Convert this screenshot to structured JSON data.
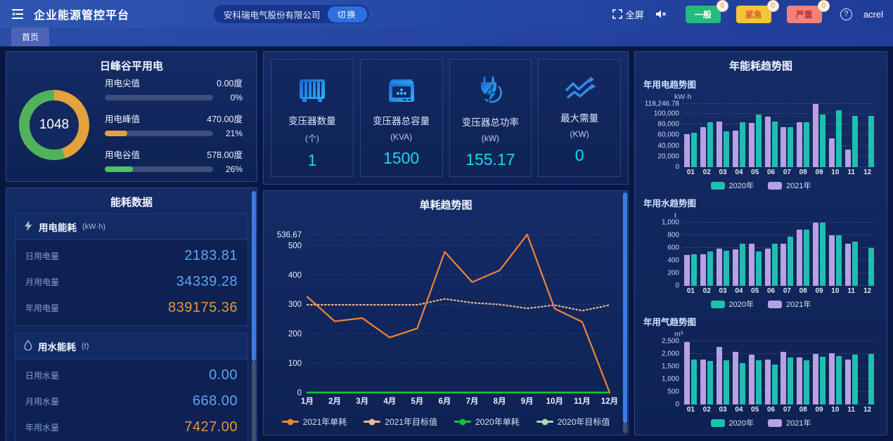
{
  "header": {
    "title": "企业能源管控平台",
    "company": "安科瑞电气股份有限公司",
    "switch_label": "切换",
    "fullscreen_label": "全屏",
    "username": "acrel",
    "alarms": [
      {
        "label": "一般",
        "count": "0",
        "bg": "#22bd7a",
        "fg": "#ffffff"
      },
      {
        "label": "紧急",
        "count": "0",
        "bg": "#f3c53b",
        "fg": "#e2572f"
      },
      {
        "label": "严重",
        "count": "0",
        "bg": "#f2827b",
        "fg": "#c62f2f"
      }
    ],
    "icons": [
      "menu-fold-icon",
      "fullscreen-icon",
      "mute-icon",
      "help-icon"
    ]
  },
  "tabs": [
    {
      "label": "首页"
    }
  ],
  "peak_panel": {
    "title": "日峰谷平用电",
    "donut_total": "1048",
    "donut": {
      "orange_value": 470,
      "green_value": 578,
      "orange_color": "#e3a23b",
      "green_color": "#52b25a"
    },
    "rows": [
      {
        "label": "用电尖值",
        "value": "0.00度",
        "percent": "0%",
        "pct": 0,
        "color": "#e3a23b"
      },
      {
        "label": "用电峰值",
        "value": "470.00度",
        "percent": "21%",
        "pct": 21,
        "color": "#e3a23b"
      },
      {
        "label": "用电谷值",
        "value": "578.00度",
        "percent": "26%",
        "pct": 26,
        "color": "#4fc262"
      }
    ]
  },
  "energy_panel": {
    "title": "能耗数据",
    "sections": [
      {
        "icon": "lightning-icon",
        "name": "用电能耗",
        "unit": "(kW·h)",
        "rows": [
          {
            "label": "日用电量",
            "value": "2183.81",
            "cls": "val-blue"
          },
          {
            "label": "月用电量",
            "value": "34339.28",
            "cls": "val-blue"
          },
          {
            "label": "年用电量",
            "value": "839175.36",
            "cls": "val-orange"
          }
        ]
      },
      {
        "icon": "water-drop-icon",
        "name": "用水能耗",
        "unit": "(t)",
        "rows": [
          {
            "label": "日用水量",
            "value": "0.00",
            "cls": "val-blue"
          },
          {
            "label": "月用水量",
            "value": "668.00",
            "cls": "val-blue"
          },
          {
            "label": "年用水量",
            "value": "7427.00",
            "cls": "val-orange"
          }
        ]
      }
    ]
  },
  "stat_cards": [
    {
      "icon": "transformer-icon",
      "label": "变压器数量",
      "unit": "(个)",
      "value": "1"
    },
    {
      "icon": "capacity-icon",
      "label": "变压器总容量",
      "unit": "(KVA)",
      "value": "1500"
    },
    {
      "icon": "power-plug-icon",
      "label": "变压器总功率",
      "unit": "(kW)",
      "value": "155.17"
    },
    {
      "icon": "trend-arrows-icon",
      "label": "最大需量",
      "unit": "(KW)",
      "value": "0"
    }
  ],
  "right_panel_title": "年能耗趋势图",
  "chart_data": [
    {
      "id": "unit_trend",
      "type": "line",
      "title": "单耗趋势图",
      "categories": [
        "1月",
        "2月",
        "3月",
        "4月",
        "5月",
        "6月",
        "7月",
        "8月",
        "9月",
        "10月",
        "11月",
        "12月"
      ],
      "ylim": [
        0,
        536.67
      ],
      "grid": true,
      "legend_position": "bottom",
      "yticks": [
        {
          "v": 0,
          "l": "0"
        },
        {
          "v": 100,
          "l": "100"
        },
        {
          "v": 200,
          "l": "200"
        },
        {
          "v": 300,
          "l": "300"
        },
        {
          "v": 400,
          "l": "400"
        },
        {
          "v": 500,
          "l": "500"
        },
        {
          "v": 536.67,
          "l": "536.67"
        }
      ],
      "series": [
        {
          "name": "2020年目标值",
          "color": "#a6dcb0",
          "style": "solid",
          "values": [
            0,
            0,
            0,
            0,
            0,
            0,
            0,
            0,
            0,
            0,
            0,
            0
          ]
        },
        {
          "name": "2021年目标值",
          "color": "#efb890",
          "style": "dotted",
          "values": [
            298,
            298,
            298,
            298,
            298,
            318,
            305,
            299,
            286,
            297,
            278,
            297
          ]
        },
        {
          "name": "2020年单耗",
          "color": "#15c33c",
          "style": "solid",
          "values": [
            0,
            0,
            0,
            0,
            0,
            0,
            0,
            0,
            0,
            0,
            0,
            0
          ]
        },
        {
          "name": "2021年单耗",
          "color": "#ee8438",
          "style": "solid",
          "values": [
            325,
            242,
            253,
            187,
            218,
            478,
            375,
            415,
            536.67,
            285,
            240,
            0
          ]
        }
      ],
      "legend": [
        {
          "label": "2021年单耗",
          "color": "#ee8438",
          "marker": "line"
        },
        {
          "label": "2021年目标值",
          "color": "#efb890",
          "marker": "line"
        },
        {
          "label": "2020年单耗",
          "color": "#15c33c",
          "marker": "line"
        },
        {
          "label": "2020年目标值",
          "color": "#a6dcb0",
          "marker": "line"
        }
      ]
    },
    {
      "id": "year_electric",
      "type": "bar",
      "title": "年用电趋势图",
      "unit": "kW·h",
      "categories": [
        "01",
        "02",
        "03",
        "04",
        "05",
        "06",
        "07",
        "08",
        "09",
        "10",
        "11",
        "12"
      ],
      "ylim": [
        0,
        118246.78
      ],
      "grid": true,
      "legend_position": "bottom",
      "yticks": [
        {
          "v": 118246.78,
          "l": "118,246.78"
        },
        {
          "v": 100000,
          "l": "100,000"
        },
        {
          "v": 80000,
          "l": "80,000"
        },
        {
          "v": 60000,
          "l": "60,000"
        },
        {
          "v": 40000,
          "l": "40,000"
        },
        {
          "v": 20000,
          "l": "20,000"
        },
        {
          "v": 0,
          "l": "0"
        }
      ],
      "series": [
        {
          "name": "2021年",
          "color": "#b6a2e3",
          "values": [
            62000,
            75000,
            85000,
            68000,
            83000,
            95000,
            75000,
            84000,
            118246.78,
            54000,
            33000,
            0
          ]
        },
        {
          "name": "2020年",
          "color": "#1fbfae",
          "values": [
            65000,
            84000,
            67000,
            84000,
            98000,
            86000,
            75000,
            84000,
            98000,
            106000,
            96000,
            96000
          ]
        }
      ],
      "legend": [
        {
          "label": "2020年",
          "color": "#1fbfae",
          "marker": "swatch"
        },
        {
          "label": "2021年",
          "color": "#b6a2e3",
          "marker": "swatch"
        }
      ]
    },
    {
      "id": "year_water",
      "type": "bar",
      "title": "年用水趋势图",
      "unit": "t",
      "categories": [
        "01",
        "02",
        "03",
        "04",
        "05",
        "06",
        "07",
        "08",
        "09",
        "10",
        "11",
        "12"
      ],
      "ylim": [
        0,
        1000
      ],
      "grid": true,
      "legend_position": "bottom",
      "yticks": [
        {
          "v": 1000,
          "l": "1,000"
        },
        {
          "v": 800,
          "l": "800"
        },
        {
          "v": 600,
          "l": "600"
        },
        {
          "v": 400,
          "l": "400"
        },
        {
          "v": 200,
          "l": "200"
        },
        {
          "v": 0,
          "l": "0"
        }
      ],
      "series": [
        {
          "name": "2021年",
          "color": "#b6a2e3",
          "values": [
            490,
            500,
            590,
            575,
            670,
            590,
            668,
            890,
            1000,
            805,
            668,
            0
          ]
        },
        {
          "name": "2020年",
          "color": "#1fbfae",
          "values": [
            500,
            550,
            555,
            665,
            550,
            665,
            780,
            890,
            1000,
            800,
            700,
            600
          ]
        }
      ],
      "legend": [
        {
          "label": "2020年",
          "color": "#1fbfae",
          "marker": "swatch"
        },
        {
          "label": "2021年",
          "color": "#b6a2e3",
          "marker": "swatch"
        }
      ]
    },
    {
      "id": "year_gas",
      "type": "bar",
      "title": "年用气趋势图",
      "unit": "m³",
      "categories": [
        "01",
        "02",
        "03",
        "04",
        "05",
        "06",
        "07",
        "08",
        "09",
        "10",
        "11",
        "12"
      ],
      "ylim": [
        0,
        2500
      ],
      "grid": true,
      "legend_position": "bottom",
      "yticks": [
        {
          "v": 2500,
          "l": "2,500"
        },
        {
          "v": 2000,
          "l": "2,000"
        },
        {
          "v": 1500,
          "l": "1,500"
        },
        {
          "v": 1000,
          "l": "1,000"
        },
        {
          "v": 500,
          "l": "500"
        },
        {
          "v": 0,
          "l": "0"
        }
      ],
      "series": [
        {
          "name": "2021年",
          "color": "#b6a2e3",
          "values": [
            2480,
            1790,
            2290,
            2090,
            1960,
            1790,
            2090,
            1860,
            2010,
            2030,
            1780,
            0
          ]
        },
        {
          "name": "2020年",
          "color": "#1fbfae",
          "values": [
            1790,
            1730,
            1760,
            1640,
            1750,
            1580,
            1870,
            1750,
            1890,
            1910,
            1980,
            2010
          ]
        }
      ],
      "legend": [
        {
          "label": "2020年",
          "color": "#1fbfae",
          "marker": "swatch"
        },
        {
          "label": "2021年",
          "color": "#b6a2e3",
          "marker": "swatch"
        }
      ]
    }
  ]
}
